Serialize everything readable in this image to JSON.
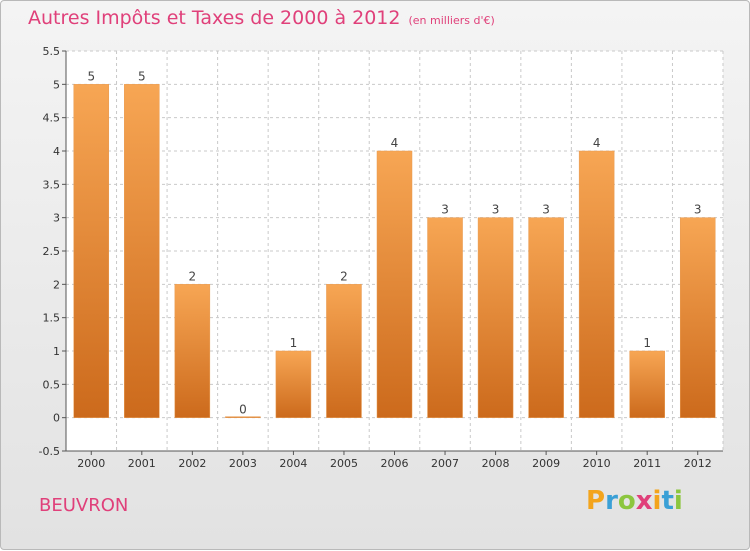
{
  "header": {
    "title": "Autres Impôts et Taxes de 2000 à 2012",
    "unit": "(en milliers d'€)"
  },
  "footer": {
    "city": "BEUVRON",
    "brand_letters": [
      "P",
      "r",
      "o",
      "x",
      "i",
      "t",
      "i"
    ]
  },
  "colors": {
    "accent": "#e0407a",
    "bar_top": "#f7a654",
    "bar_bottom": "#cc6a1c",
    "grid": "#c9c9c9"
  },
  "chart_data": {
    "type": "bar",
    "title": "Autres Impôts et Taxes de 2000 à 2012",
    "subtitle": "(en milliers d'€)",
    "categories": [
      "2000",
      "2001",
      "2002",
      "2003",
      "2004",
      "2005",
      "2006",
      "2007",
      "2008",
      "2009",
      "2010",
      "2011",
      "2012"
    ],
    "values": [
      5,
      5,
      2,
      0,
      1,
      2,
      4,
      3,
      3,
      3,
      4,
      1,
      3
    ],
    "data_labels": [
      "5",
      "5",
      "2",
      "0",
      "1",
      "2",
      "4",
      "3",
      "3",
      "3",
      "4",
      "1",
      "3"
    ],
    "ylim": [
      -0.5,
      5.5
    ],
    "yticks": [
      -0.5,
      0,
      0.5,
      1,
      1.5,
      2,
      2.5,
      3,
      3.5,
      4,
      4.5,
      5,
      5.5
    ],
    "ytick_labels": [
      "-0.5",
      "0",
      "0.5",
      "1",
      "1.5",
      "2",
      "2.5",
      "3",
      "3.5",
      "4",
      "4.5",
      "5",
      "5.5"
    ],
    "grid": "horizontal-dashed",
    "legend": "none"
  }
}
